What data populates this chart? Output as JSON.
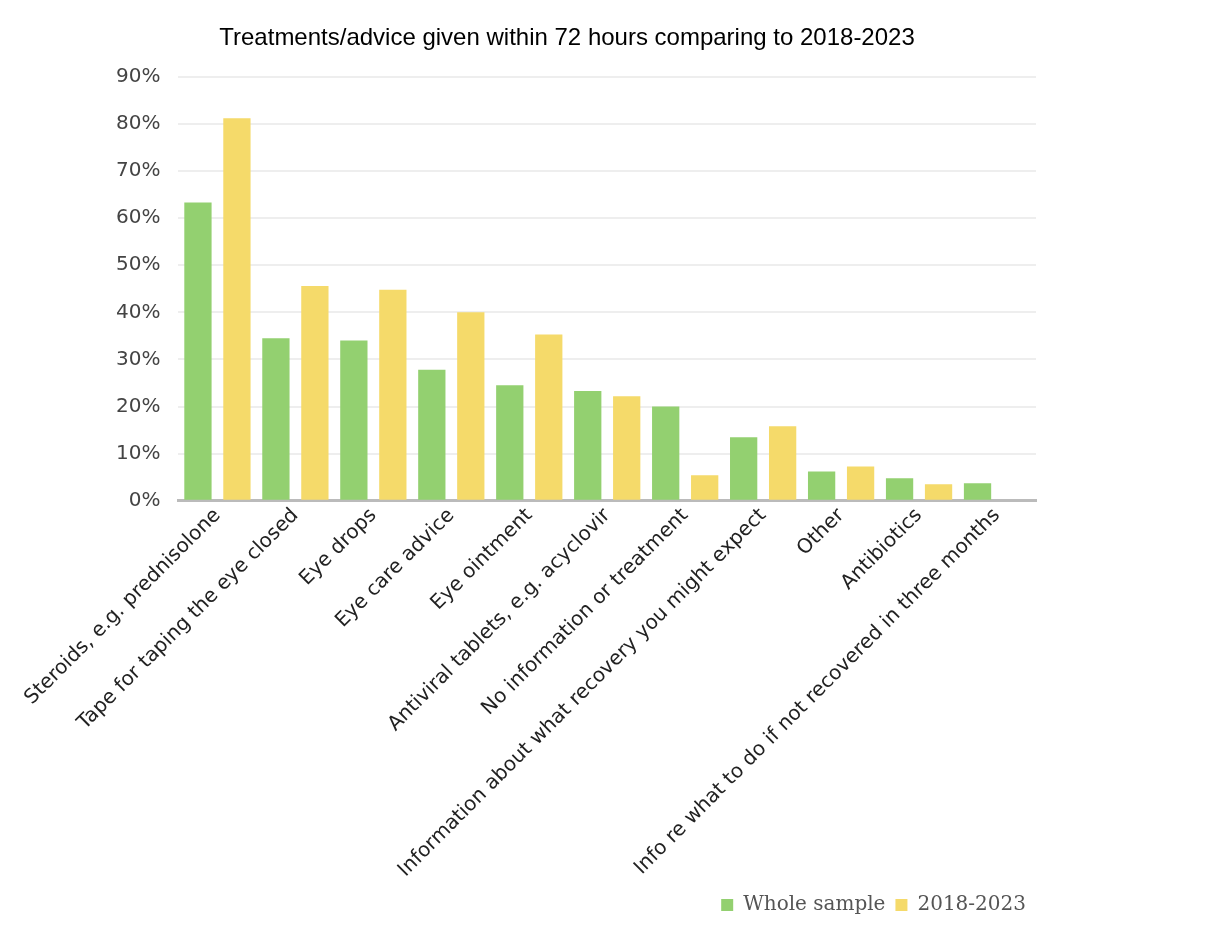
{
  "chart_data": {
    "type": "bar",
    "title": "Treatments/advice given within 72 hours comparing to 2018-2023",
    "categories": [
      "Steroids, e.g. prednisolone",
      "Tape for taping the eye closed",
      "Eye drops",
      "Eye care advice",
      "Eye ointment",
      "Antiviral tablets, e.g. acyclovir",
      "No information or treatment",
      "Information about what recovery you might expect",
      "Other",
      "Antibiotics",
      "Info re what to do if not recovered in three months"
    ],
    "series": [
      {
        "name": "Whole sample",
        "color": "#93d070",
        "values": [
          63.3,
          34.5,
          34,
          27.8,
          24.5,
          23.3,
          20,
          13.5,
          6.2,
          4.8,
          3.7
        ]
      },
      {
        "name": "2018-2023",
        "color": "#f5da6a",
        "values": [
          81.2,
          45.6,
          44.8,
          40,
          35.3,
          22.2,
          5.4,
          15.8,
          7.3,
          3.5,
          null
        ]
      }
    ],
    "ylim": [
      0,
      90
    ],
    "yticks": [
      {
        "value": 0,
        "label": "0%"
      },
      {
        "value": 10,
        "label": "10%"
      },
      {
        "value": 20,
        "label": "20%"
      },
      {
        "value": 30,
        "label": "30%"
      },
      {
        "value": 40,
        "label": "40%"
      },
      {
        "value": 50,
        "label": "50%"
      },
      {
        "value": 60,
        "label": "60%"
      },
      {
        "value": 70,
        "label": "70%"
      },
      {
        "value": 80,
        "label": "80%"
      },
      {
        "value": 90,
        "label": "90%"
      }
    ],
    "grid": "y",
    "legend": "bottom right"
  }
}
